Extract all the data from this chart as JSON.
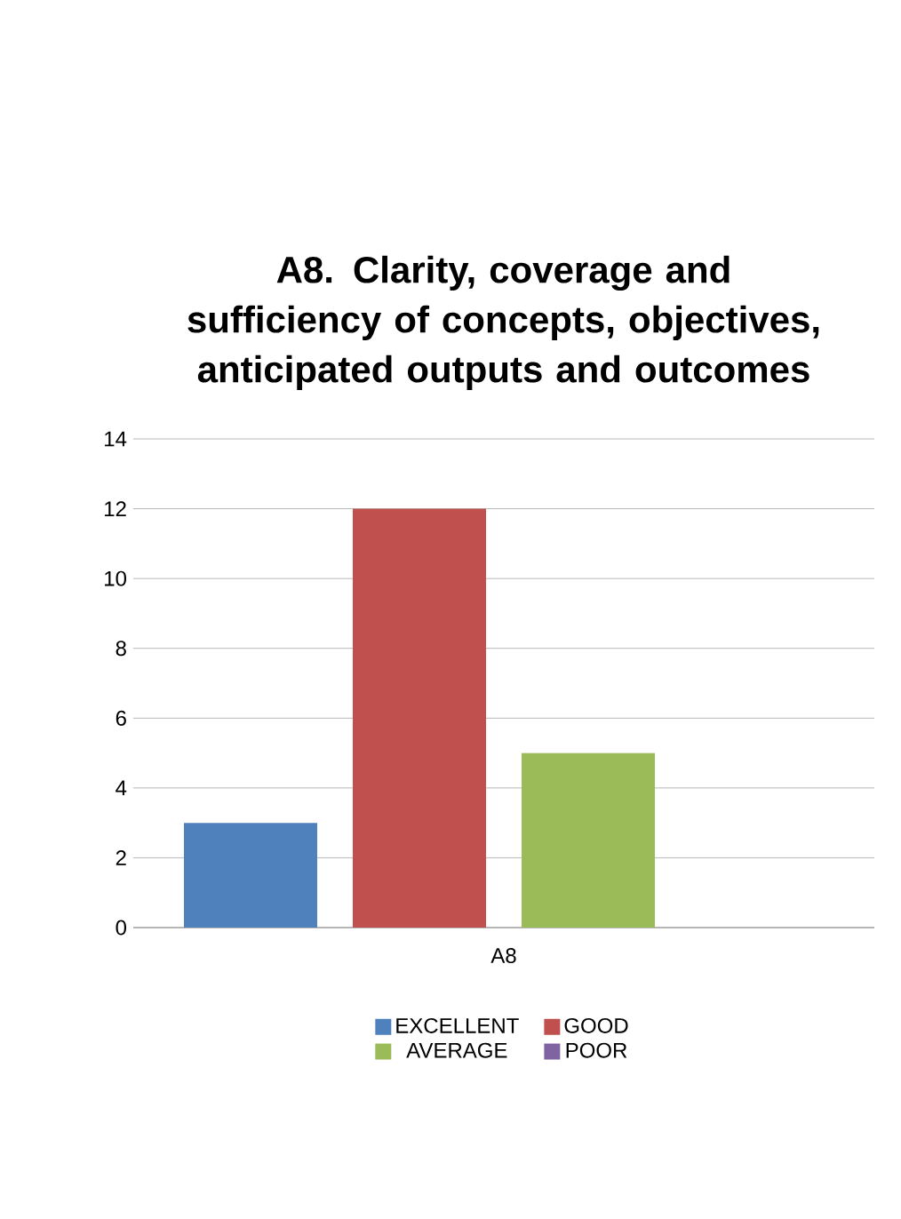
{
  "chart_data": {
    "type": "bar",
    "title": "A8. Clarity, coverage and sufficiency of concepts, objectives, anticipated outputs and outcomes",
    "categories": [
      "A8"
    ],
    "series": [
      {
        "name": "EXCELLENT",
        "color": "#4f81bd",
        "values": [
          3
        ]
      },
      {
        "name": "GOOD",
        "color": "#c0504d",
        "values": [
          12
        ]
      },
      {
        "name": "AVERAGE",
        "color": "#9bbb59",
        "values": [
          5
        ]
      },
      {
        "name": "POOR",
        "color": "#8064a2",
        "values": [
          0
        ]
      }
    ],
    "ylim": [
      0,
      14
    ],
    "yticks": [
      0,
      2,
      4,
      6,
      8,
      10,
      12,
      14
    ],
    "grid": "y",
    "legend": "bottom"
  }
}
